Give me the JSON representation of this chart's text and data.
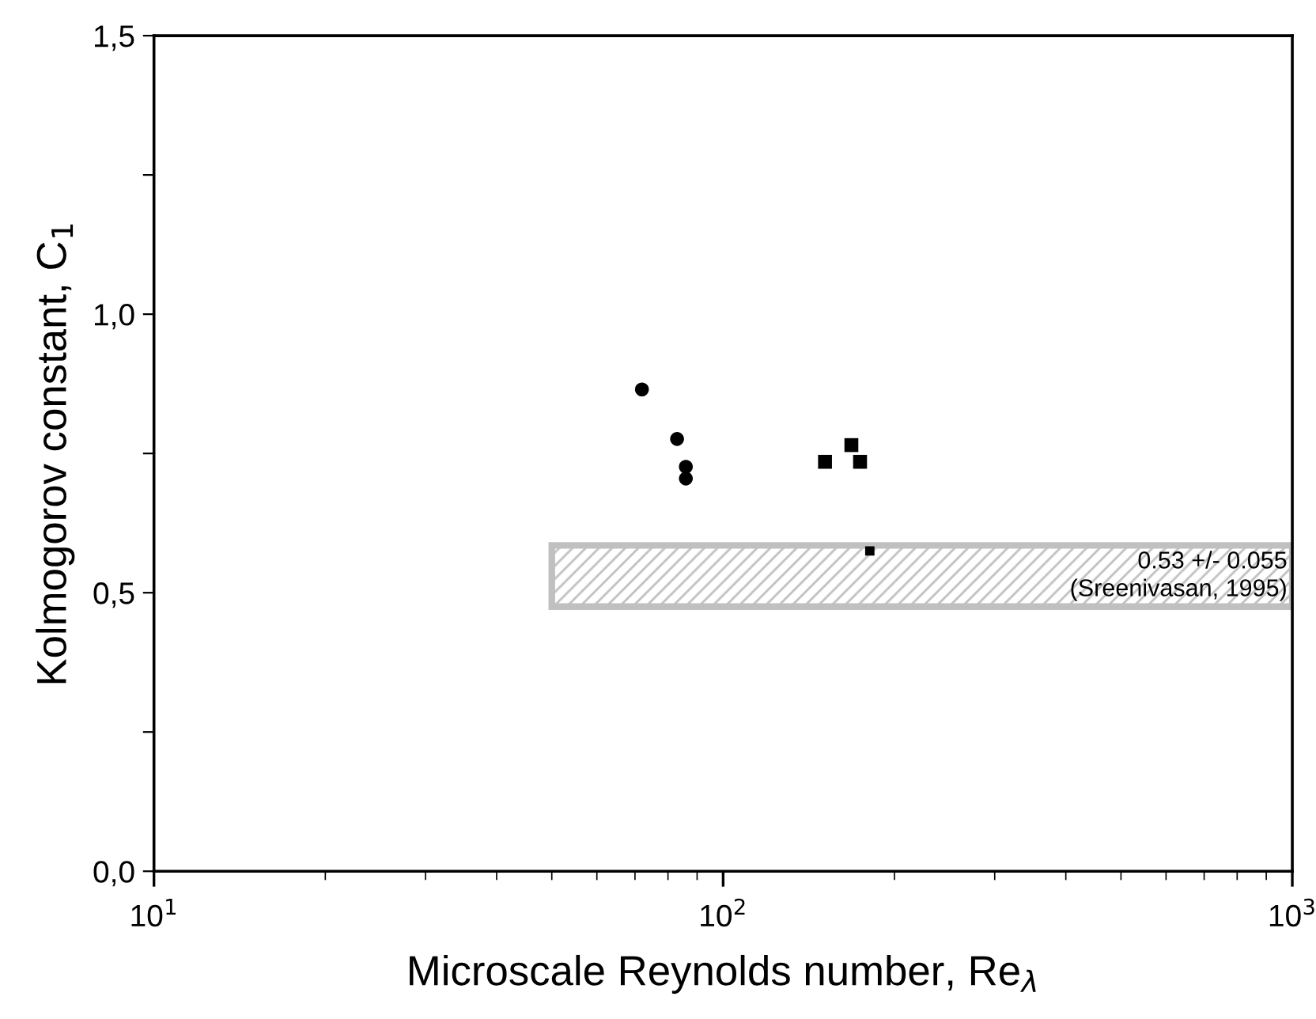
{
  "chart_data": {
    "type": "scatter",
    "xlabel": "Microscale Reynolds number, Re$_{λ}$",
    "ylabel": "Kolmogorov constant, C$_{1}$",
    "log": "x",
    "xlim": [
      10,
      1000
    ],
    "xticks": [
      {
        "value": 10,
        "label": "10$^{1}$"
      },
      {
        "value": 100,
        "label": "10$^{2}$"
      },
      {
        "value": 1000,
        "label": "10$^{3}$"
      }
    ],
    "ylim": [
      0,
      1.5
    ],
    "yticks": [
      {
        "value": 0,
        "label": "0,0"
      },
      {
        "value": 0.25,
        "label": null
      },
      {
        "value": 0.5,
        "label": "0,5"
      },
      {
        "value": 0.75,
        "label": null
      },
      {
        "value": 1.0,
        "label": "1,0"
      },
      {
        "value": 1.25,
        "label": null
      },
      {
        "value": 1.5,
        "label": "1,5"
      }
    ],
    "grid": false,
    "series": [
      {
        "marker": "circle",
        "color": "#000000",
        "x": [
          72,
          83,
          86,
          86
        ],
        "values": [
          0.865,
          0.776,
          0.726,
          0.705
        ]
      },
      {
        "marker": "square",
        "color": "#000000",
        "x": [
          151,
          168,
          174
        ],
        "values": [
          0.735,
          0.765,
          0.735
        ]
      },
      {
        "marker": "square",
        "color": "#000000",
        "x": [
          181
        ],
        "values": [
          0.575
        ]
      },
      {
        "type": "area",
        "color": "#c0c0c0",
        "x": [
          50,
          1000
        ],
        "values": [
          null,
          null
        ],
        "lower": [
          0.475,
          0.475
        ],
        "upper": [
          0.585,
          0.585
        ]
      }
    ],
    "annotations": [
      {
        "text": "0.53 +/- 0.055\n(Sreenivasan, 1995)",
        "x": 1000,
        "y": 0.53
      }
    ]
  }
}
